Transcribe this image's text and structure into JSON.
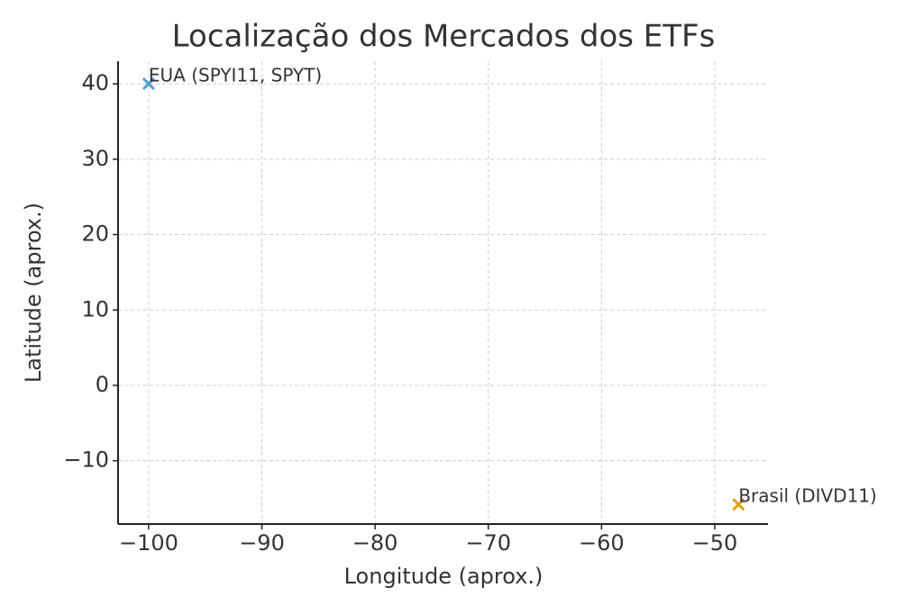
{
  "chart_data": {
    "type": "scatter",
    "title": "Localização dos Mercados dos ETFs",
    "x_label": "Longitude (aprox.)",
    "y_label": "Latitude (aprox.)",
    "series": [
      {
        "name": "EUA (SPYI11, SPYT)",
        "color": "#56a0d3",
        "x": [
          -100
        ],
        "y": [
          40
        ]
      },
      {
        "name": "Brasil (DIVD11)",
        "color": "#e69f00",
        "x": [
          -47.9
        ],
        "y": [
          -15.8
        ]
      }
    ],
    "xlim": [
      -102.7,
      -45.3
    ],
    "xticks": [
      {
        "value": -100,
        "label": "−100"
      },
      {
        "value": -90,
        "label": "−90"
      },
      {
        "value": -80,
        "label": "−80"
      },
      {
        "value": -70,
        "label": "−70"
      },
      {
        "value": -60,
        "label": "−60"
      },
      {
        "value": -50,
        "label": "−50"
      }
    ],
    "ylim": [
      -18.4,
      43
    ],
    "yticks": [
      {
        "value": -10,
        "label": "−10"
      },
      0,
      10,
      20,
      30,
      40
    ],
    "grid": true
  }
}
